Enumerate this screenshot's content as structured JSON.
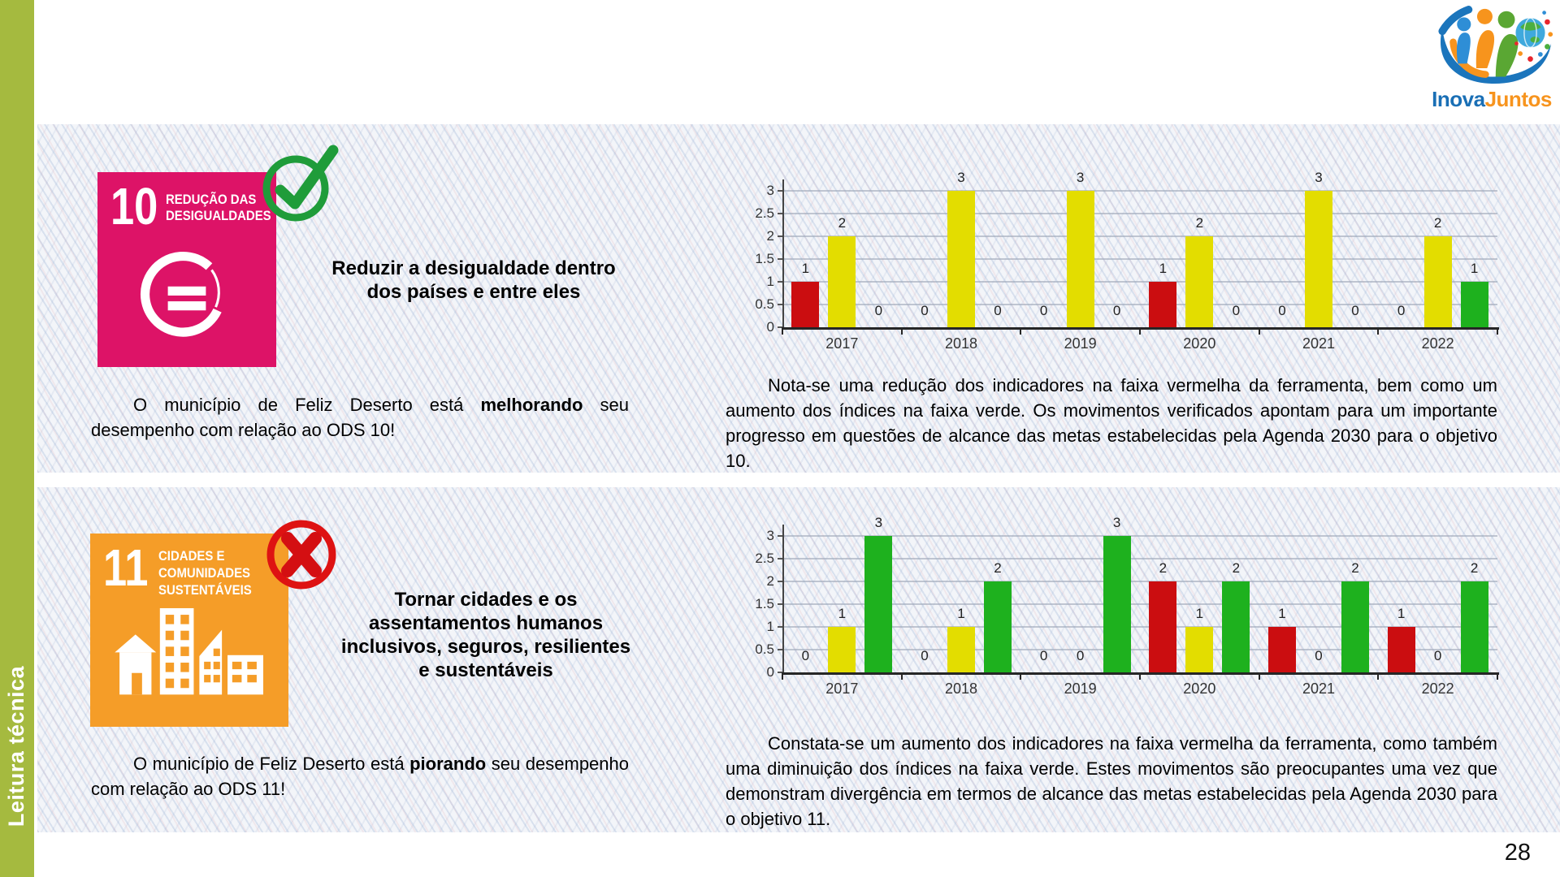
{
  "page": {
    "number": "28"
  },
  "sidebar": {
    "label": "Leitura técnica",
    "color": "#a5ba3f"
  },
  "logo": {
    "name_part1": "Inova",
    "name_part2": "Juntos",
    "blue": "#1a6fb5",
    "orange": "#f7941e"
  },
  "icons": {
    "ods10_status": "check-icon",
    "ods11_status": "x-icon",
    "ods10_goal": "equality-icon",
    "ods11_goal": "city-skyline-icon"
  },
  "colors": {
    "sdg10_pink": "#dd1367",
    "sdg11_orange": "#f59d28",
    "bar_red": "#cb0d10",
    "bar_yellow": "#e3dd00",
    "bar_green": "#1eb11e",
    "check_green": "#1f9c3a",
    "x_red": "#de1212"
  },
  "sections": [
    {
      "goal_number": "10",
      "goal_title_lines": [
        "REDUÇÃO DAS",
        "DESIGUALDADES"
      ],
      "goal_color": "#dd1367",
      "status_icon": "check-icon",
      "headline_lines": [
        "Reduzir a desigualdade dentro",
        "dos países e entre eles"
      ],
      "summary": {
        "pre": "O município de Feliz Deserto está ",
        "bold": "melhorando",
        "post": " seu desempenho com relação ao ODS 10!"
      },
      "analysis": "Nota-se uma redução dos indicadores na faixa vermelha da ferramenta, bem como um aumento dos índices na faixa verde. Os movimentos verificados apontam para um importante progresso em questões de alcance das metas estabelecidas pela Agenda 2030 para o objetivo 10."
    },
    {
      "goal_number": "11",
      "goal_title_lines": [
        "CIDADES E",
        "COMUNIDADES",
        "SUSTENTÁVEIS"
      ],
      "goal_color": "#f59d28",
      "status_icon": "x-icon",
      "headline_lines": [
        "Tornar cidades e os",
        "assentamentos humanos",
        "inclusivos, seguros, resilientes",
        "e sustentáveis"
      ],
      "summary": {
        "pre": "O município de Feliz Deserto está ",
        "bold": "piorando",
        "post": " seu desempenho com relação ao ODS 11!"
      },
      "analysis": "Constata-se um aumento dos indicadores na faixa vermelha da ferramenta, como também uma diminuição dos índices na faixa verde. Estes movimentos são preocupantes uma vez que demonstram divergência em termos de alcance das metas estabelecidas pela Agenda 2030 para o objetivo 11."
    }
  ],
  "chart_data": [
    {
      "type": "bar",
      "title": "",
      "categories": [
        "2017",
        "2018",
        "2019",
        "2020",
        "2021",
        "2022"
      ],
      "series": [
        {
          "name": "faixa vermelha",
          "color": "#cb0d10",
          "values": [
            1,
            0,
            0,
            1,
            0,
            0
          ]
        },
        {
          "name": "faixa amarela",
          "color": "#e3dd00",
          "values": [
            2,
            3,
            3,
            2,
            3,
            2
          ]
        },
        {
          "name": "faixa verde",
          "color": "#1eb11e",
          "values": [
            0,
            0,
            0,
            0,
            0,
            1
          ]
        }
      ],
      "ylim": [
        0,
        3
      ],
      "yticks": [
        0,
        0.5,
        1,
        1.5,
        2,
        2.5,
        3
      ],
      "grid": true,
      "legend": false,
      "data_labels": true
    },
    {
      "type": "bar",
      "title": "",
      "categories": [
        "2017",
        "2018",
        "2019",
        "2020",
        "2021",
        "2022"
      ],
      "series": [
        {
          "name": "faixa vermelha",
          "color": "#cb0d10",
          "values": [
            0,
            0,
            0,
            2,
            1,
            1
          ]
        },
        {
          "name": "faixa amarela",
          "color": "#e3dd00",
          "values": [
            1,
            1,
            0,
            1,
            0,
            0
          ]
        },
        {
          "name": "faixa verde",
          "color": "#1eb11e",
          "values": [
            3,
            2,
            3,
            2,
            2,
            2
          ]
        }
      ],
      "ylim": [
        0,
        3
      ],
      "yticks": [
        0,
        0.5,
        1,
        1.5,
        2,
        2.5,
        3
      ],
      "grid": true,
      "legend": false,
      "data_labels": true
    }
  ]
}
